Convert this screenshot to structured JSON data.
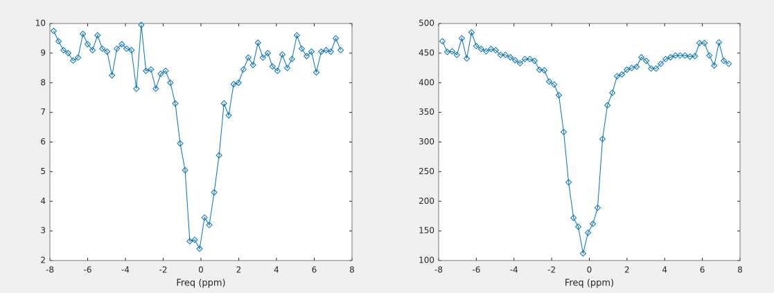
{
  "chart_data": [
    {
      "type": "line",
      "xlabel": "Freq (ppm)",
      "x": [
        -7.8,
        -7.54,
        -7.28,
        -7.03,
        -6.77,
        -6.51,
        -6.25,
        -6.0,
        -5.74,
        -5.48,
        -5.22,
        -4.97,
        -4.71,
        -4.45,
        -4.19,
        -3.94,
        -3.68,
        -3.42,
        -3.16,
        -2.91,
        -2.65,
        -2.39,
        -2.13,
        -1.87,
        -1.62,
        -1.36,
        -1.1,
        -0.84,
        -0.59,
        -0.33,
        -0.07,
        0.19,
        0.44,
        0.7,
        0.96,
        1.22,
        1.47,
        1.73,
        1.99,
        2.25,
        2.51,
        2.76,
        3.02,
        3.28,
        3.54,
        3.79,
        4.05,
        4.31,
        4.57,
        4.82,
        5.08,
        5.34,
        5.6,
        5.85,
        6.11,
        6.37,
        6.63,
        6.88,
        7.14,
        7.4
      ],
      "values": [
        9.75,
        9.4,
        9.1,
        9.0,
        8.75,
        8.85,
        9.65,
        9.3,
        9.1,
        9.6,
        9.15,
        9.05,
        8.25,
        9.15,
        9.3,
        9.15,
        9.1,
        7.8,
        9.95,
        8.4,
        8.45,
        7.8,
        8.3,
        8.4,
        8.0,
        7.3,
        5.95,
        5.05,
        2.65,
        2.7,
        2.4,
        3.45,
        3.2,
        4.3,
        5.55,
        7.3,
        6.9,
        7.95,
        8.0,
        8.45,
        8.85,
        8.6,
        9.35,
        8.85,
        9.0,
        8.55,
        8.4,
        8.95,
        8.5,
        8.8,
        9.6,
        9.15,
        8.9,
        9.05,
        8.35,
        9.05,
        9.1,
        9.05,
        9.5,
        9.1
      ],
      "color": "#0072bd",
      "marker": "diamond",
      "xlim": [
        -8,
        8
      ],
      "xticks": [
        -8,
        -6,
        -4,
        -2,
        0,
        2,
        4,
        6,
        8
      ],
      "ylim": [
        2,
        10
      ],
      "yticks": [
        2,
        3,
        4,
        5,
        6,
        7,
        8,
        9,
        10
      ]
    },
    {
      "type": "line",
      "xlabel": "Freq (ppm)",
      "x": [
        -7.8,
        -7.54,
        -7.28,
        -7.03,
        -6.77,
        -6.51,
        -6.25,
        -6.0,
        -5.74,
        -5.48,
        -5.22,
        -4.97,
        -4.71,
        -4.45,
        -4.19,
        -3.94,
        -3.68,
        -3.42,
        -3.16,
        -2.91,
        -2.65,
        -2.39,
        -2.13,
        -1.87,
        -1.62,
        -1.36,
        -1.1,
        -0.84,
        -0.59,
        -0.33,
        -0.07,
        0.19,
        0.44,
        0.7,
        0.96,
        1.22,
        1.47,
        1.73,
        1.99,
        2.25,
        2.51,
        2.76,
        3.02,
        3.28,
        3.54,
        3.79,
        4.05,
        4.31,
        4.57,
        4.82,
        5.08,
        5.34,
        5.6,
        5.85,
        6.11,
        6.37,
        6.63,
        6.88,
        7.14,
        7.4
      ],
      "values": [
        470,
        452,
        453,
        447,
        475,
        441,
        485,
        462,
        457,
        453,
        457,
        455,
        447,
        447,
        443,
        438,
        433,
        440,
        440,
        437,
        422,
        421,
        402,
        397,
        379,
        317,
        232,
        172,
        157,
        112,
        147,
        162,
        189,
        305,
        362,
        383,
        411,
        414,
        422,
        425,
        427,
        443,
        437,
        424,
        424,
        432,
        440,
        443,
        446,
        446,
        446,
        444,
        445,
        467,
        467,
        446,
        429,
        468,
        437,
        432
      ],
      "color": "#0072bd",
      "marker": "diamond",
      "xlim": [
        -8,
        8
      ],
      "xticks": [
        -8,
        -6,
        -4,
        -2,
        0,
        2,
        4,
        6,
        8
      ],
      "ylim": [
        100,
        500
      ],
      "yticks": [
        100,
        150,
        200,
        250,
        300,
        350,
        400,
        450,
        500
      ]
    }
  ]
}
